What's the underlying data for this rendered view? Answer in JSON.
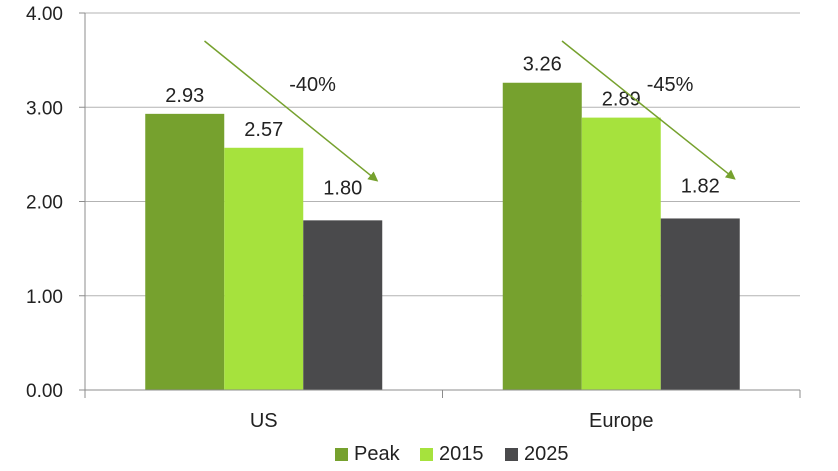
{
  "chart_data": {
    "type": "bar",
    "categories": [
      "US",
      "Europe"
    ],
    "series": [
      {
        "name": "Peak",
        "values": [
          2.93,
          3.26
        ],
        "labels": [
          "2.93",
          "3.26"
        ],
        "color": "#76a12e"
      },
      {
        "name": "2015",
        "values": [
          2.57,
          2.89
        ],
        "labels": [
          "2.57",
          "2.89"
        ],
        "color": "#a6e23d"
      },
      {
        "name": "2025",
        "values": [
          1.8,
          1.82
        ],
        "labels": [
          "1.80",
          "1.82"
        ],
        "color": "#4a4a4c"
      }
    ],
    "ylim": [
      0,
      4
    ],
    "yticks": [
      0,
      1,
      2,
      3,
      4
    ],
    "ytick_labels": [
      "0.00",
      "1.00",
      "2.00",
      "3.00",
      "4.00"
    ],
    "grid": true,
    "legend": "bottom",
    "annotations": [
      {
        "category": "US",
        "text": "-40%"
      },
      {
        "category": "Europe",
        "text": "-45%"
      }
    ],
    "colors": {
      "arrow": "#76a12e",
      "grid": "#b3b3b3",
      "axis": "#8c8c8c"
    }
  }
}
